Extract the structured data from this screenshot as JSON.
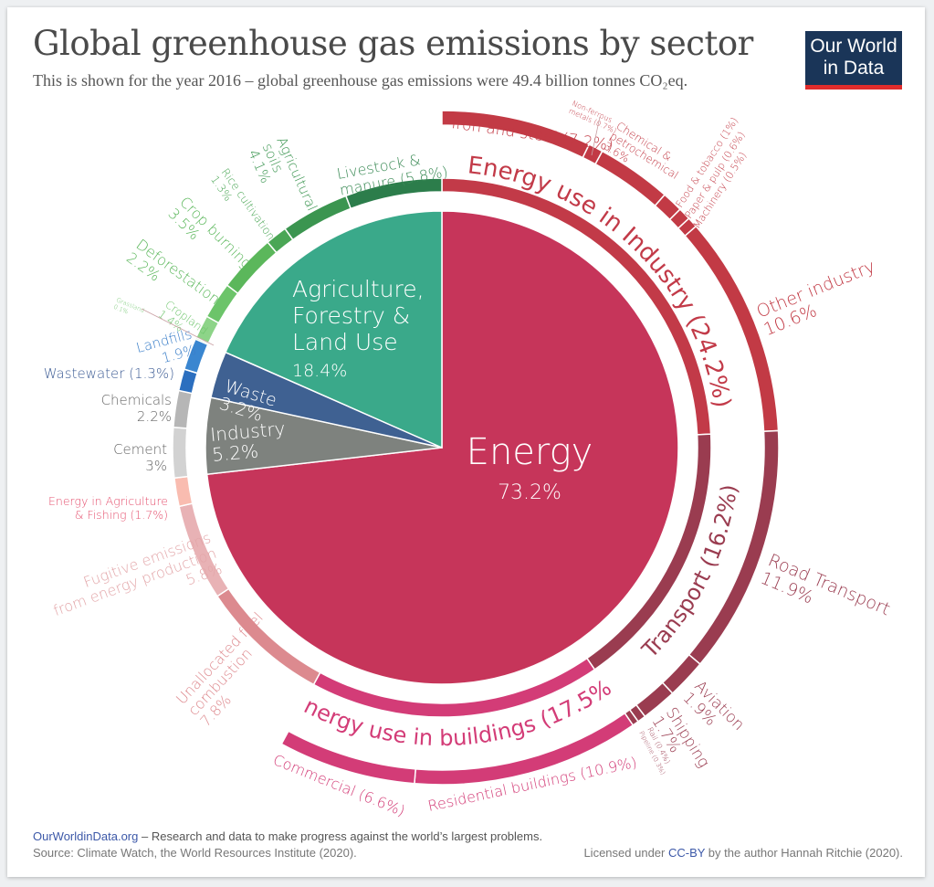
{
  "header": {
    "title": "Global greenhouse gas emissions by sector",
    "subtitle": "This is shown for the year 2016 – global greenhouse gas emissions were 49.4 billion tonnes CO₂eq.",
    "logo_text": "Our World in Data"
  },
  "footer": {
    "site_link": "OurWorldinData.org",
    "tagline": " – Research and data to make progress against the world’s largest problems.",
    "source": "Source: Climate Watch, the World Resources Institute (2020).",
    "license_prefix": "Licensed under ",
    "license_link": "CC-BY",
    "license_suffix": " by the author Hannah Ritchie  (2020)."
  },
  "chart_data": {
    "type": "pie",
    "title": "Global greenhouse gas emissions by sector",
    "unit": "% of global greenhouse gas emissions",
    "sectors": [
      {
        "name": "Energy",
        "value": 73.2,
        "color": "#c6355a",
        "lines": [
          "Energy",
          "73.2%"
        ],
        "children": [
          {
            "name": "Energy use in Industry",
            "value": 24.2,
            "color": "#c23a48",
            "lines": [
              "Energy use in Industry (24.2%)"
            ],
            "children": [
              {
                "name": "Iron and steel",
                "value": 7.2,
                "color": "#c23a45",
                "lines": [
                  "Iron and steel (7.2%)"
                ]
              },
              {
                "name": "Non-ferrous metals",
                "value": 0.7,
                "color": "#c23a45",
                "lines": [
                  "Non-ferrous",
                  "metals (0.7%)"
                ]
              },
              {
                "name": "Chemical & petrochemical",
                "value": 3.6,
                "color": "#c23a45",
                "lines": [
                  "Chemical &",
                  "petrochemical",
                  "3.6%"
                ]
              },
              {
                "name": "Food & tobacco",
                "value": 1,
                "color": "#c23a45",
                "lines": [
                  "Food &  tobacco (1%)"
                ]
              },
              {
                "name": "Paper & pulp",
                "value": 0.6,
                "color": "#c23a45",
                "lines": [
                  "Paper & pulp (0.6%)"
                ]
              },
              {
                "name": "Machinery",
                "value": 0.5,
                "color": "#c23a45",
                "lines": [
                  "Machinery (0.5%)"
                ]
              },
              {
                "name": "Other industry",
                "value": 10.6,
                "color": "#c23a45",
                "lines": [
                  "Other industry",
                  "10.6%"
                ]
              }
            ]
          },
          {
            "name": "Transport",
            "value": 16.2,
            "color": "#9a3c50",
            "lines": [
              "Transport (16.2%)"
            ],
            "children": [
              {
                "name": "Road Transport",
                "value": 11.9,
                "color": "#9a3c50",
                "lines": [
                  "Road Transport",
                  "11.9%"
                ]
              },
              {
                "name": "Aviation",
                "value": 1.9,
                "color": "#9a3c50",
                "lines": [
                  "Aviation",
                  "1.9%"
                ]
              },
              {
                "name": "Shipping",
                "value": 1.7,
                "color": "#9a3c50",
                "lines": [
                  "Shipping",
                  "1.7%"
                ]
              },
              {
                "name": "Rail",
                "value": 0.4,
                "color": "#9a3c50",
                "lines": [
                  "Rail (0.4%)"
                ]
              },
              {
                "name": "Pipeline",
                "value": 0.3,
                "color": "#9a3c50",
                "lines": [
                  "Pipeline (0.3%)"
                ]
              }
            ]
          },
          {
            "name": "Energy use in buildings",
            "value": 17.5,
            "color": "#d33c77",
            "lines": [
              "Energy use in buildings (17.5%)"
            ],
            "children": [
              {
                "name": "Residential buildings",
                "value": 10.9,
                "color": "#d33c77",
                "lines": [
                  "Residential buildings (10.9%)"
                ]
              },
              {
                "name": "Commercial",
                "value": 6.6,
                "color": "#d33c77",
                "lines": [
                  "Commercial  (6.6%)"
                ]
              }
            ]
          },
          {
            "name": "Unallocated fuel combustion",
            "value": 7.8,
            "color": "#dc8a8f",
            "lines": [
              "Unallocated fuel",
              "combustion",
              "7.8%"
            ]
          },
          {
            "name": "Fugitive emissions from energy production",
            "value": 5.8,
            "color": "#e8b2b5",
            "lines": [
              "Fugitive emissions",
              "from energy production",
              "5.8%"
            ]
          },
          {
            "name": "Energy in Agriculture & Fishing",
            "value": 1.7,
            "color": "#f9bcb0",
            "lines": [
              "Energy in Agriculture",
              "& Fishing (1.7%)"
            ]
          }
        ]
      },
      {
        "name": "Industry",
        "value": 5.2,
        "color": "#7e827e",
        "lines": [
          "Industry",
          "5.2%"
        ],
        "children": [
          {
            "name": "Cement",
            "value": 3,
            "color": "#d2d2d2",
            "lines": [
              "Cement",
              "3%"
            ]
          },
          {
            "name": "Chemicals",
            "value": 2.2,
            "color": "#b6b6b6",
            "lines": [
              "Chemicals",
              "2.2%"
            ]
          }
        ]
      },
      {
        "name": "Waste",
        "value": 3.2,
        "color": "#3f6192",
        "lines": [
          "Waste",
          "3.2%"
        ],
        "children": [
          {
            "name": "Wastewater",
            "value": 1.3,
            "color": "#2c6fbf",
            "lines": [
              "Wastewater (1.3%)"
            ]
          },
          {
            "name": "Landfills",
            "value": 1.9,
            "color": "#3a86d0",
            "lines": [
              "Landfills",
              "1.9%"
            ]
          }
        ]
      },
      {
        "name": "Agriculture, Forestry & Land Use",
        "value": 18.4,
        "color": "#3aa98a",
        "lines": [
          "Agriculture,",
          "Forestry &",
          "Land Use",
          "18.4%"
        ],
        "children": [
          {
            "name": "Grassland",
            "value": 0.1,
            "color": "#a4dea2",
            "lines": [
              "Grassland",
              "0.1%"
            ]
          },
          {
            "name": "Cropland",
            "value": 1.4,
            "color": "#8dd488",
            "lines": [
              "Cropland",
              "1.4%"
            ]
          },
          {
            "name": "Deforestation",
            "value": 2.2,
            "color": "#6cc46a",
            "lines": [
              "Deforestation",
              "2.2%"
            ]
          },
          {
            "name": "Crop burning",
            "value": 3.5,
            "color": "#5bb75b",
            "lines": [
              "Crop burning",
              "3.5%"
            ]
          },
          {
            "name": "Rice cultivation",
            "value": 1.3,
            "color": "#4aa655",
            "lines": [
              "Rice cultivation",
              "1.3%"
            ]
          },
          {
            "name": "Agricultural soils",
            "value": 4.1,
            "color": "#3b9550",
            "lines": [
              "Agricultural",
              "soils",
              "4.1%"
            ]
          },
          {
            "name": "Livestock & manure",
            "value": 5.8,
            "color": "#2c7d4b",
            "lines": [
              "Livestock &",
              "manure (5.8%)"
            ]
          }
        ]
      }
    ]
  }
}
